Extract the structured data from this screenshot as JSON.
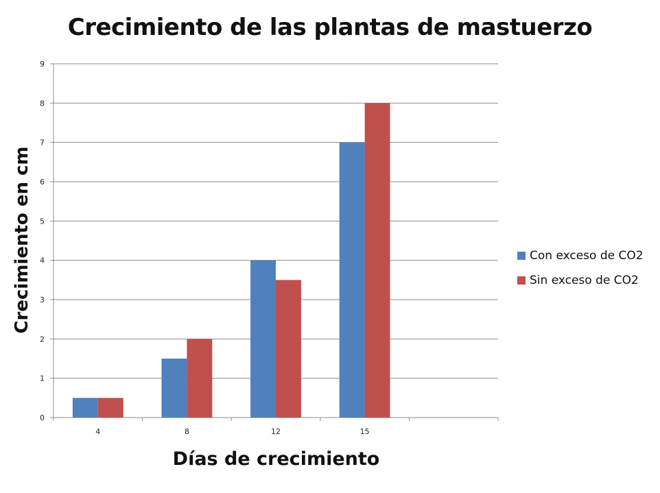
{
  "chart_data": {
    "type": "bar",
    "title": "Crecimiento de las plantas de mastuerzo",
    "xlabel": "Días de crecimiento",
    "ylabel": "Crecimiento en cm",
    "categories": [
      "4",
      "8",
      "12",
      "15",
      ""
    ],
    "yticks": [
      "0",
      "1",
      "2",
      "3",
      "4",
      "5",
      "6",
      "7",
      "8",
      "9"
    ],
    "ylim": [
      0,
      9
    ],
    "grid": true,
    "legend_position": "right",
    "series": [
      {
        "name": "Con exceso de CO2",
        "color": "#4f81bd",
        "values": [
          0.5,
          1.5,
          4,
          7,
          null
        ]
      },
      {
        "name": "Sin exceso de CO2",
        "color": "#c0504d",
        "values": [
          0.5,
          2,
          3.5,
          8,
          null
        ]
      }
    ]
  }
}
